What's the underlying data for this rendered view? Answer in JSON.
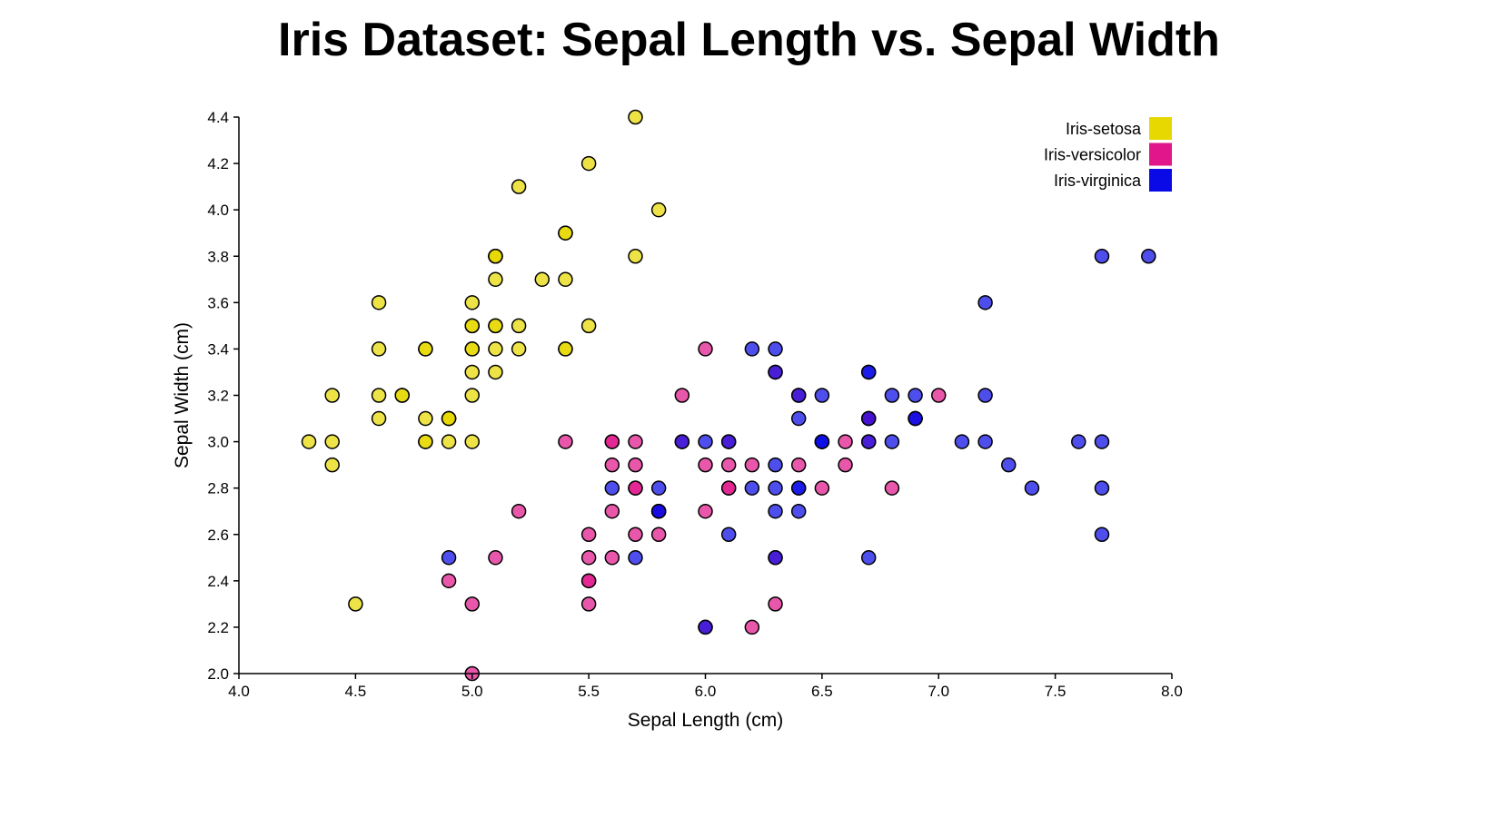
{
  "chart_data": {
    "type": "scatter",
    "title": "Iris Dataset: Sepal Length vs. Sepal Width",
    "xlabel": "Sepal Length (cm)",
    "ylabel": "Sepal Width (cm)",
    "xlim": [
      4.0,
      8.0
    ],
    "ylim": [
      2.0,
      4.4
    ],
    "x_ticks": [
      "4.0",
      "4.5",
      "5.0",
      "5.5",
      "6.0",
      "6.5",
      "7.0",
      "7.5",
      "8.0"
    ],
    "y_ticks": [
      "2.0",
      "2.2",
      "2.4",
      "2.6",
      "2.8",
      "3.0",
      "3.2",
      "3.4",
      "3.6",
      "3.8",
      "4.0",
      "4.2",
      "4.4"
    ],
    "grid": false,
    "legend_position": "top-right",
    "series": [
      {
        "name": "Iris-setosa",
        "color": "#e6d800",
        "points": [
          [
            5.1,
            3.5
          ],
          [
            4.9,
            3.0
          ],
          [
            4.7,
            3.2
          ],
          [
            4.6,
            3.1
          ],
          [
            5.0,
            3.6
          ],
          [
            5.4,
            3.9
          ],
          [
            4.6,
            3.4
          ],
          [
            5.0,
            3.4
          ],
          [
            4.4,
            2.9
          ],
          [
            4.9,
            3.1
          ],
          [
            5.4,
            3.7
          ],
          [
            4.8,
            3.4
          ],
          [
            4.8,
            3.0
          ],
          [
            4.3,
            3.0
          ],
          [
            5.8,
            4.0
          ],
          [
            5.7,
            4.4
          ],
          [
            5.4,
            3.9
          ],
          [
            5.1,
            3.5
          ],
          [
            5.7,
            3.8
          ],
          [
            5.1,
            3.8
          ],
          [
            5.4,
            3.4
          ],
          [
            5.1,
            3.7
          ],
          [
            4.6,
            3.6
          ],
          [
            5.1,
            3.3
          ],
          [
            4.8,
            3.4
          ],
          [
            5.0,
            3.0
          ],
          [
            5.0,
            3.4
          ],
          [
            5.2,
            3.5
          ],
          [
            5.2,
            3.4
          ],
          [
            4.7,
            3.2
          ],
          [
            4.8,
            3.1
          ],
          [
            5.4,
            3.4
          ],
          [
            5.2,
            4.1
          ],
          [
            5.5,
            4.2
          ],
          [
            4.9,
            3.1
          ],
          [
            5.0,
            3.2
          ],
          [
            5.5,
            3.5
          ],
          [
            4.9,
            3.1
          ],
          [
            4.4,
            3.0
          ],
          [
            5.1,
            3.4
          ],
          [
            5.0,
            3.5
          ],
          [
            4.5,
            2.3
          ],
          [
            4.4,
            3.2
          ],
          [
            5.0,
            3.5
          ],
          [
            5.1,
            3.8
          ],
          [
            4.8,
            3.0
          ],
          [
            5.1,
            3.8
          ],
          [
            4.6,
            3.2
          ],
          [
            5.3,
            3.7
          ],
          [
            5.0,
            3.3
          ]
        ]
      },
      {
        "name": "Iris-versicolor",
        "color": "#e0168a",
        "points": [
          [
            7.0,
            3.2
          ],
          [
            6.4,
            3.2
          ],
          [
            6.9,
            3.1
          ],
          [
            5.5,
            2.3
          ],
          [
            6.5,
            2.8
          ],
          [
            5.7,
            2.8
          ],
          [
            6.3,
            3.3
          ],
          [
            4.9,
            2.4
          ],
          [
            6.6,
            2.9
          ],
          [
            5.2,
            2.7
          ],
          [
            5.0,
            2.0
          ],
          [
            5.9,
            3.0
          ],
          [
            6.0,
            2.2
          ],
          [
            6.1,
            2.9
          ],
          [
            5.6,
            2.9
          ],
          [
            6.7,
            3.1
          ],
          [
            5.6,
            3.0
          ],
          [
            5.8,
            2.7
          ],
          [
            6.2,
            2.2
          ],
          [
            5.6,
            2.5
          ],
          [
            5.9,
            3.2
          ],
          [
            6.1,
            2.8
          ],
          [
            6.3,
            2.5
          ],
          [
            6.1,
            2.8
          ],
          [
            6.4,
            2.9
          ],
          [
            6.6,
            3.0
          ],
          [
            6.8,
            2.8
          ],
          [
            6.7,
            3.0
          ],
          [
            6.0,
            2.9
          ],
          [
            5.7,
            2.6
          ],
          [
            5.5,
            2.4
          ],
          [
            5.5,
            2.4
          ],
          [
            5.8,
            2.7
          ],
          [
            6.0,
            2.7
          ],
          [
            5.4,
            3.0
          ],
          [
            6.0,
            3.4
          ],
          [
            6.7,
            3.1
          ],
          [
            6.3,
            2.3
          ],
          [
            5.6,
            3.0
          ],
          [
            5.5,
            2.5
          ],
          [
            5.5,
            2.6
          ],
          [
            6.1,
            3.0
          ],
          [
            5.8,
            2.6
          ],
          [
            5.0,
            2.3
          ],
          [
            5.6,
            2.7
          ],
          [
            5.7,
            3.0
          ],
          [
            5.7,
            2.9
          ],
          [
            6.2,
            2.9
          ],
          [
            5.1,
            2.5
          ],
          [
            5.7,
            2.8
          ]
        ]
      },
      {
        "name": "Iris-virginica",
        "color": "#0a0ae6",
        "points": [
          [
            6.3,
            3.3
          ],
          [
            5.8,
            2.7
          ],
          [
            7.1,
            3.0
          ],
          [
            6.3,
            2.9
          ],
          [
            6.5,
            3.0
          ],
          [
            7.6,
            3.0
          ],
          [
            4.9,
            2.5
          ],
          [
            7.3,
            2.9
          ],
          [
            6.7,
            2.5
          ],
          [
            7.2,
            3.6
          ],
          [
            6.5,
            3.2
          ],
          [
            6.4,
            2.7
          ],
          [
            6.8,
            3.0
          ],
          [
            5.7,
            2.5
          ],
          [
            5.8,
            2.8
          ],
          [
            6.4,
            3.2
          ],
          [
            6.5,
            3.0
          ],
          [
            7.7,
            3.8
          ],
          [
            7.7,
            2.6
          ],
          [
            6.0,
            2.2
          ],
          [
            6.9,
            3.2
          ],
          [
            5.6,
            2.8
          ],
          [
            7.7,
            2.8
          ],
          [
            6.3,
            2.7
          ],
          [
            6.7,
            3.3
          ],
          [
            7.2,
            3.2
          ],
          [
            6.2,
            2.8
          ],
          [
            6.1,
            3.0
          ],
          [
            6.4,
            2.8
          ],
          [
            7.2,
            3.0
          ],
          [
            7.4,
            2.8
          ],
          [
            7.9,
            3.8
          ],
          [
            6.4,
            2.8
          ],
          [
            6.3,
            2.8
          ],
          [
            6.1,
            2.6
          ],
          [
            7.7,
            3.0
          ],
          [
            6.3,
            3.4
          ],
          [
            6.4,
            3.1
          ],
          [
            6.0,
            3.0
          ],
          [
            6.9,
            3.1
          ],
          [
            6.7,
            3.1
          ],
          [
            6.9,
            3.1
          ],
          [
            5.8,
            2.7
          ],
          [
            6.8,
            3.2
          ],
          [
            6.7,
            3.3
          ],
          [
            6.7,
            3.0
          ],
          [
            6.3,
            2.5
          ],
          [
            6.5,
            3.0
          ],
          [
            6.2,
            3.4
          ],
          [
            5.9,
            3.0
          ]
        ]
      }
    ]
  }
}
